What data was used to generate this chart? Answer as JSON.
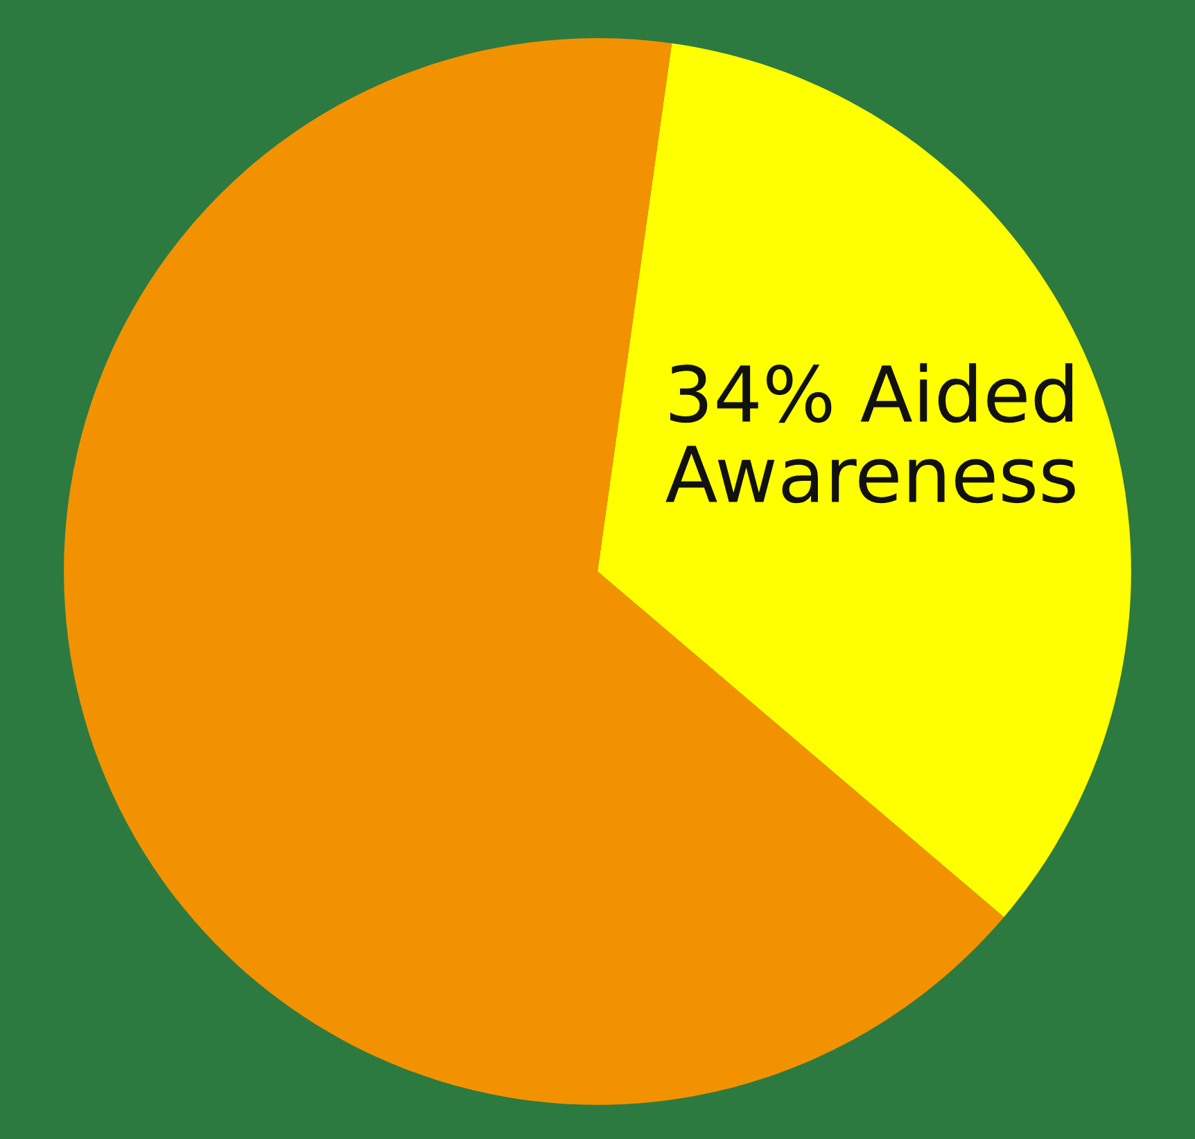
{
  "chart_data": {
    "type": "pie",
    "categories": [
      "Aided Awareness",
      null
    ],
    "values": [
      34,
      66
    ],
    "value_labels": [
      "34%",
      null
    ],
    "colors": [
      "#ffff00",
      "#f39200"
    ],
    "legend": false
  }
}
